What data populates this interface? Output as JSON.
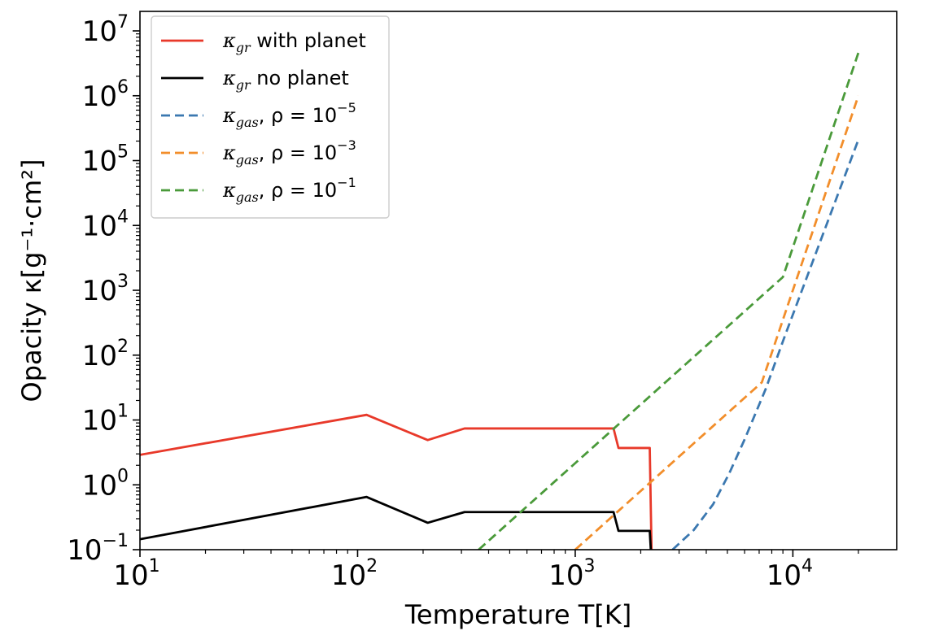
{
  "chart_data": {
    "type": "line",
    "xlabel": "Temperature T[K]",
    "ylabel": "Opacity κ[g⁻¹·cm²]",
    "xscale": "log",
    "yscale": "log",
    "xlim": [
      10,
      30000
    ],
    "ylim": [
      0.1,
      20000000
    ],
    "x_ticks": [
      {
        "value": 10,
        "base": "10",
        "exp": "1"
      },
      {
        "value": 100,
        "base": "10",
        "exp": "2"
      },
      {
        "value": 1000,
        "base": "10",
        "exp": "3"
      },
      {
        "value": 10000,
        "base": "10",
        "exp": "4"
      }
    ],
    "y_ticks": [
      {
        "value": 0.1,
        "base": "10",
        "exp": "−1"
      },
      {
        "value": 1,
        "base": "10",
        "exp": "0"
      },
      {
        "value": 10,
        "base": "10",
        "exp": "1"
      },
      {
        "value": 100,
        "base": "10",
        "exp": "2"
      },
      {
        "value": 1000,
        "base": "10",
        "exp": "3"
      },
      {
        "value": 10000,
        "base": "10",
        "exp": "4"
      },
      {
        "value": 100000,
        "base": "10",
        "exp": "5"
      },
      {
        "value": 1000000,
        "base": "10",
        "exp": "6"
      },
      {
        "value": 10000000,
        "base": "10",
        "exp": "7"
      }
    ],
    "legend_position": "top-left",
    "grid": false,
    "series": [
      {
        "name": "κgr with planet",
        "color": "#e8392a",
        "style": "solid",
        "points": [
          [
            10,
            2.9
          ],
          [
            110,
            12
          ],
          [
            210,
            4.9
          ],
          [
            310,
            7.4
          ],
          [
            1500,
            7.4
          ],
          [
            1580,
            3.7
          ],
          [
            2200,
            3.7
          ],
          [
            2250,
            0.05
          ]
        ]
      },
      {
        "name": "κgr no planet",
        "color": "#000000",
        "style": "solid",
        "points": [
          [
            10,
            0.145
          ],
          [
            110,
            0.65
          ],
          [
            210,
            0.26
          ],
          [
            310,
            0.38
          ],
          [
            1500,
            0.38
          ],
          [
            1580,
            0.195
          ],
          [
            2200,
            0.195
          ],
          [
            2250,
            0.05
          ]
        ]
      },
      {
        "name": "κgas, ρ = 10⁻⁵",
        "color": "#3b78b0",
        "style": "dashed",
        "points": [
          [
            2800,
            0.1
          ],
          [
            3500,
            0.2
          ],
          [
            4300,
            0.5
          ],
          [
            5100,
            1.5
          ],
          [
            6000,
            5
          ],
          [
            7500,
            30
          ],
          [
            9200,
            200
          ],
          [
            20000,
            210000
          ]
        ]
      },
      {
        "name": "κgas, ρ = 10⁻³",
        "color": "#f28e2b",
        "style": "dashed",
        "points": [
          [
            1000,
            0.1
          ],
          [
            7200,
            38
          ],
          [
            20000,
            1000000
          ]
        ]
      },
      {
        "name": "κgas, ρ = 10⁻¹",
        "color": "#4a9a3a",
        "style": "dashed",
        "points": [
          [
            360,
            0.1
          ],
          [
            9000,
            1600
          ],
          [
            20000,
            4600000
          ]
        ]
      }
    ],
    "legend": [
      {
        "label_symbol": "κ",
        "label_sub": "gr",
        "label_rest": " with planet",
        "label_sup": "",
        "color": "#e8392a",
        "style": "solid"
      },
      {
        "label_symbol": "κ",
        "label_sub": "gr",
        "label_rest": " no planet",
        "label_sup": "",
        "color": "#000000",
        "style": "solid"
      },
      {
        "label_symbol": "κ",
        "label_sub": "gas",
        "label_rest": ", ρ = 10",
        "label_sup": "−5",
        "color": "#3b78b0",
        "style": "dashed"
      },
      {
        "label_symbol": "κ",
        "label_sub": "gas",
        "label_rest": ", ρ = 10",
        "label_sup": "−3",
        "color": "#f28e2b",
        "style": "dashed"
      },
      {
        "label_symbol": "κ",
        "label_sub": "gas",
        "label_rest": ", ρ = 10",
        "label_sup": "−1",
        "color": "#4a9a3a",
        "style": "dashed"
      }
    ]
  }
}
